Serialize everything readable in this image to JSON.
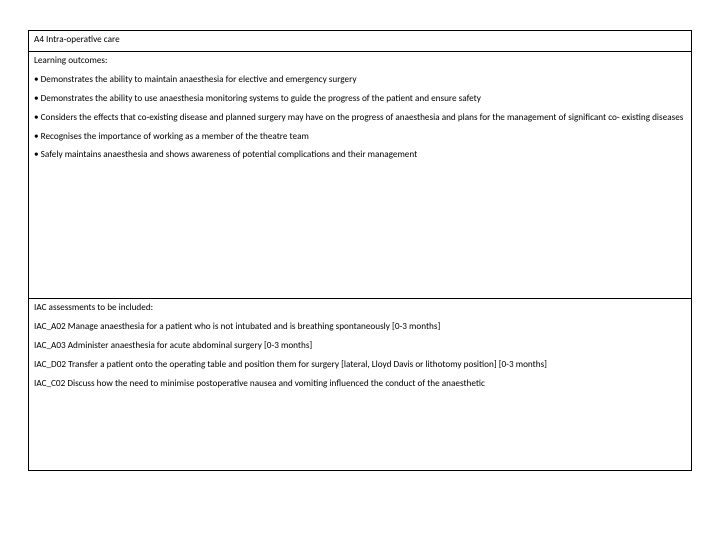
{
  "title": "A4 Intra-operative care",
  "outcomes": {
    "heading": "Learning outcomes:",
    "bullets": [
      "• Demonstrates the ability to maintain anaesthesia for elective and emergency surgery",
      "• Demonstrates the ability to use anaesthesia monitoring systems to guide the progress of the patient and ensure safety",
      "• Considers the effects that co-existing disease and planned surgery may have on the progress of anaesthesia and plans for the management of significant co- existing diseases",
      "• Recognises the importance of working as a member of the theatre team",
      "• Safely maintains anaesthesia and shows awareness of potential complications and their management"
    ]
  },
  "assessments": {
    "heading": "IAC assessments to be included:",
    "items": [
      "IAC_A02 Manage anaesthesia for a patient who is not intubated and is breathing spontaneously [0-3 months]",
      "IAC_A03 Administer anaesthesia for acute abdominal surgery [0-3 months]",
      "IAC_D02 Transfer a patient onto the operating table and position them for surgery [lateral, Lloyd Davis or lithotomy position] [0-3 months]",
      "IAC_C02 Discuss how the need to minimise postoperative nausea and vomiting influenced the conduct of the anaesthetic"
    ]
  }
}
